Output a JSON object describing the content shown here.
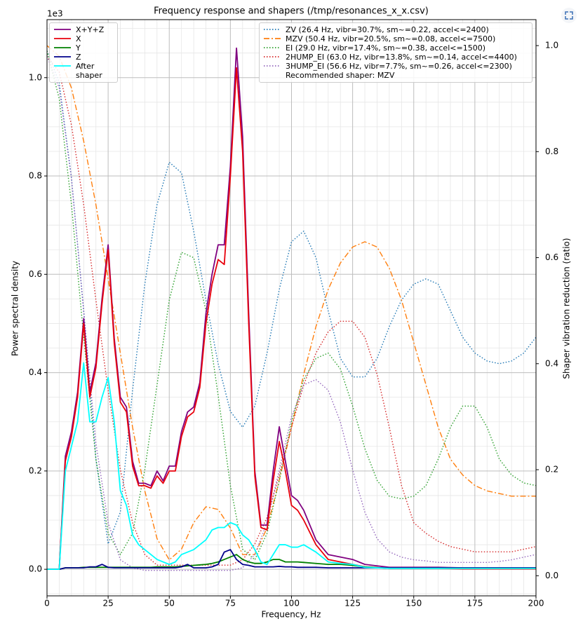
{
  "chart_data": {
    "type": "line",
    "title": "Frequency response and shapers (/tmp/resonances_x_x.csv)",
    "x_label": "Frequency, Hz",
    "y_label": "Power spectral density",
    "y2_label": "Shaper vibration reduction (ratio)",
    "y_offset_label": "1e3",
    "annotation": "Recommended shaper: MZV",
    "grid": true,
    "xlim": [
      0,
      200
    ],
    "ylim": [
      -0.054,
      1.118
    ],
    "y2lim": [
      -0.038,
      1.049
    ],
    "xticks": [
      0,
      25,
      50,
      75,
      100,
      125,
      150,
      175,
      200
    ],
    "yticks": [
      {
        "value": 0,
        "label": "0.0"
      },
      0.2,
      0.4,
      0.6,
      0.8,
      {
        "value": 1,
        "label": "1.0"
      }
    ],
    "y2ticks": [
      {
        "value": 0,
        "label": "0.0"
      },
      0.2,
      0.4,
      0.6,
      0.8,
      {
        "value": 1,
        "label": "1.0"
      }
    ],
    "xminorticks": [
      5,
      10,
      15,
      20,
      30,
      35,
      40,
      45,
      55,
      60,
      65,
      70,
      80,
      85,
      90,
      95,
      105,
      110,
      115,
      120,
      130,
      135,
      140,
      145,
      155,
      160,
      165,
      170,
      180,
      185,
      190,
      195
    ],
    "yminorticks": [
      -0.05,
      0.05,
      0.1,
      0.15,
      0.25,
      0.3,
      0.35,
      0.45,
      0.5,
      0.55,
      0.65,
      0.7,
      0.75,
      0.85,
      0.9,
      0.95,
      1.05,
      1.1
    ],
    "x": [
      0,
      2.5,
      5,
      7.5,
      10,
      12.5,
      15,
      17.5,
      20,
      22.5,
      25,
      27.5,
      30,
      32.5,
      35,
      37.5,
      40,
      42.5,
      45,
      47.5,
      50,
      52.5,
      55,
      57.5,
      60,
      62.5,
      65,
      67.5,
      70,
      72.5,
      75,
      77.5,
      80,
      82.5,
      85,
      87.5,
      90,
      92.5,
      95,
      97.5,
      100,
      102.5,
      105,
      110,
      115,
      120,
      125,
      130,
      140,
      150,
      160,
      170,
      180,
      190,
      200
    ],
    "series": [
      {
        "name": "X+Y+Z",
        "color": "#800080",
        "linestyle": "solid",
        "values": [
          0,
          0,
          0,
          0.23,
          0.28,
          0.36,
          0.51,
          0.36,
          0.42,
          0.55,
          0.66,
          0.47,
          0.35,
          0.33,
          0.22,
          0.175,
          0.175,
          0.17,
          0.2,
          0.18,
          0.21,
          0.21,
          0.28,
          0.32,
          0.33,
          0.38,
          0.52,
          0.6,
          0.66,
          0.66,
          0.82,
          1.06,
          0.88,
          0.52,
          0.2,
          0.09,
          0.09,
          0.2,
          0.29,
          0.22,
          0.15,
          0.14,
          0.12,
          0.06,
          0.03,
          0.025,
          0.02,
          0.01,
          0.004,
          0.004,
          0.004,
          0.003,
          0.003,
          0.003,
          0.003
        ]
      },
      {
        "name": "X",
        "color": "#e8000b",
        "linestyle": "solid",
        "values": [
          0,
          0,
          0,
          0.22,
          0.27,
          0.35,
          0.5,
          0.35,
          0.41,
          0.54,
          0.65,
          0.46,
          0.34,
          0.32,
          0.21,
          0.17,
          0.17,
          0.165,
          0.19,
          0.175,
          0.2,
          0.2,
          0.27,
          0.31,
          0.32,
          0.37,
          0.5,
          0.58,
          0.63,
          0.62,
          0.8,
          1.02,
          0.85,
          0.5,
          0.19,
          0.085,
          0.08,
          0.18,
          0.26,
          0.2,
          0.13,
          0.12,
          0.1,
          0.05,
          0.02,
          0.015,
          0.01,
          0.005,
          0.002,
          0.002,
          0.002,
          0.001,
          0.001,
          0.001,
          0.001
        ]
      },
      {
        "name": "Y",
        "color": "#008000",
        "linestyle": "solid",
        "values": [
          0,
          0,
          0,
          0.003,
          0.003,
          0.003,
          0.004,
          0.004,
          0.004,
          0.004,
          0.004,
          0.004,
          0.004,
          0.004,
          0.004,
          0.004,
          0.004,
          0.004,
          0.005,
          0.005,
          0.005,
          0.005,
          0.006,
          0.007,
          0.008,
          0.009,
          0.01,
          0.012,
          0.015,
          0.02,
          0.025,
          0.03,
          0.02,
          0.015,
          0.012,
          0.012,
          0.015,
          0.02,
          0.02,
          0.015,
          0.015,
          0.015,
          0.014,
          0.012,
          0.01,
          0.01,
          0.008,
          0.005,
          0.002,
          0.002,
          0.002,
          0.002,
          0.002,
          0.002,
          0.002
        ]
      },
      {
        "name": "Z",
        "color": "#00008b",
        "linestyle": "solid",
        "values": [
          0,
          0,
          0,
          0.003,
          0.003,
          0.003,
          0.003,
          0.005,
          0.005,
          0.01,
          0.004,
          0.003,
          0.003,
          0.003,
          0.003,
          0.003,
          0.003,
          0.003,
          0.003,
          0.003,
          0.003,
          0.003,
          0.005,
          0.01,
          0.003,
          0.003,
          0.003,
          0.005,
          0.01,
          0.035,
          0.04,
          0.02,
          0.01,
          0.008,
          0.005,
          0.005,
          0.005,
          0.005,
          0.006,
          0.005,
          0.005,
          0.004,
          0.004,
          0.004,
          0.003,
          0.003,
          0.003,
          0.003,
          0.003,
          0.003,
          0.003,
          0.003,
          0.003,
          0.003,
          0.003
        ]
      },
      {
        "name": "After shaper",
        "color": "#00ffff",
        "linestyle": "solid",
        "values": [
          0,
          0,
          0,
          0.2,
          0.25,
          0.3,
          0.42,
          0.3,
          0.3,
          0.35,
          0.39,
          0.3,
          0.16,
          0.13,
          0.07,
          0.05,
          0.04,
          0.03,
          0.02,
          0.015,
          0.01,
          0.015,
          0.03,
          0.035,
          0.04,
          0.05,
          0.06,
          0.08,
          0.085,
          0.085,
          0.095,
          0.09,
          0.07,
          0.06,
          0.04,
          0.015,
          0.01,
          0.03,
          0.05,
          0.05,
          0.045,
          0.045,
          0.05,
          0.035,
          0.015,
          0.012,
          0.01,
          0.004,
          0.002,
          0.002,
          0.002,
          0.002,
          0.002,
          0.002,
          0.002
        ]
      },
      {
        "name": "ZV (26.4 Hz, vibr=30.7%, sm~=0.22, accel<=2400)",
        "color": "#1f77b4",
        "linestyle": "dotted",
        "axis": "y2",
        "x": [
          0,
          5,
          10,
          15,
          20,
          25,
          30,
          35,
          40,
          45,
          50,
          55,
          60,
          65,
          70,
          75,
          80,
          85,
          90,
          95,
          100,
          105,
          110,
          115,
          120,
          125,
          130,
          135,
          140,
          145,
          150,
          155,
          160,
          165,
          170,
          175,
          180,
          185,
          190,
          195,
          200
        ],
        "values": [
          0.99,
          0.93,
          0.75,
          0.5,
          0.22,
          0.06,
          0.12,
          0.35,
          0.55,
          0.7,
          0.78,
          0.76,
          0.65,
          0.52,
          0.4,
          0.31,
          0.28,
          0.32,
          0.42,
          0.54,
          0.63,
          0.65,
          0.6,
          0.5,
          0.41,
          0.375,
          0.375,
          0.41,
          0.47,
          0.52,
          0.55,
          0.56,
          0.55,
          0.5,
          0.45,
          0.42,
          0.405,
          0.4,
          0.405,
          0.42,
          0.45
        ]
      },
      {
        "name": "MZV (50.4 Hz, vibr=20.5%, sm~=0.08, accel<=7500)",
        "color": "#ff7f0e",
        "linestyle": "dashdot",
        "axis": "y2",
        "x": [
          0,
          5,
          10,
          15,
          20,
          25,
          30,
          35,
          40,
          45,
          50,
          55,
          60,
          65,
          70,
          75,
          80,
          85,
          90,
          95,
          100,
          105,
          110,
          115,
          120,
          125,
          130,
          135,
          140,
          145,
          150,
          155,
          160,
          165,
          170,
          175,
          180,
          185,
          190,
          195,
          200
        ],
        "values": [
          1.0,
          0.98,
          0.92,
          0.82,
          0.7,
          0.56,
          0.42,
          0.28,
          0.16,
          0.07,
          0.03,
          0.05,
          0.1,
          0.13,
          0.125,
          0.09,
          0.04,
          0.04,
          0.09,
          0.18,
          0.28,
          0.38,
          0.47,
          0.54,
          0.59,
          0.62,
          0.63,
          0.62,
          0.58,
          0.52,
          0.44,
          0.36,
          0.28,
          0.22,
          0.19,
          0.17,
          0.16,
          0.155,
          0.15,
          0.15,
          0.15
        ]
      },
      {
        "name": "EI (29.0 Hz, vibr=17.4%, sm~=0.38, accel<=1500)",
        "color": "#2ca02c",
        "linestyle": "dotted",
        "axis": "y2",
        "x": [
          0,
          5,
          10,
          15,
          20,
          25,
          30,
          35,
          40,
          45,
          50,
          55,
          60,
          65,
          70,
          75,
          80,
          85,
          90,
          95,
          100,
          105,
          110,
          115,
          120,
          125,
          130,
          135,
          140,
          145,
          150,
          155,
          160,
          165,
          170,
          175,
          180,
          185,
          190,
          195,
          200
        ],
        "values": [
          0.99,
          0.9,
          0.7,
          0.45,
          0.22,
          0.08,
          0.04,
          0.08,
          0.2,
          0.36,
          0.52,
          0.61,
          0.6,
          0.5,
          0.34,
          0.17,
          0.05,
          0.03,
          0.08,
          0.18,
          0.29,
          0.37,
          0.41,
          0.42,
          0.39,
          0.32,
          0.24,
          0.18,
          0.15,
          0.145,
          0.15,
          0.17,
          0.22,
          0.28,
          0.32,
          0.32,
          0.28,
          0.22,
          0.19,
          0.175,
          0.17
        ]
      },
      {
        "name": "2HUMP_EI (63.0 Hz, vibr=13.8%, sm~=0.14, accel<=4400)",
        "color": "#d62728",
        "linestyle": "dotted",
        "axis": "y2",
        "x": [
          0,
          5,
          10,
          15,
          20,
          25,
          30,
          35,
          40,
          45,
          50,
          55,
          60,
          65,
          70,
          75,
          80,
          85,
          90,
          95,
          100,
          105,
          110,
          115,
          120,
          125,
          130,
          135,
          140,
          145,
          150,
          155,
          160,
          165,
          170,
          175,
          180,
          185,
          190,
          195,
          200
        ],
        "values": [
          0.98,
          0.95,
          0.85,
          0.7,
          0.52,
          0.35,
          0.2,
          0.1,
          0.04,
          0.02,
          0.02,
          0.02,
          0.02,
          0.02,
          0.02,
          0.02,
          0.03,
          0.06,
          0.11,
          0.19,
          0.28,
          0.36,
          0.42,
          0.46,
          0.48,
          0.48,
          0.45,
          0.38,
          0.28,
          0.17,
          0.1,
          0.08,
          0.065,
          0.055,
          0.05,
          0.045,
          0.045,
          0.045,
          0.045,
          0.05,
          0.055
        ]
      },
      {
        "name": "3HUMP_EI (56.6 Hz, vibr=7.7%, sm~=0.26, accel<=2300)",
        "color": "#9467bd",
        "linestyle": "dotted",
        "axis": "y2",
        "x": [
          0,
          5,
          10,
          15,
          20,
          25,
          30,
          35,
          40,
          45,
          50,
          55,
          60,
          65,
          70,
          75,
          80,
          85,
          90,
          95,
          100,
          105,
          110,
          115,
          120,
          125,
          130,
          135,
          140,
          145,
          150,
          155,
          160,
          165,
          170,
          175,
          180,
          185,
          190,
          195,
          200
        ],
        "values": [
          0.98,
          0.92,
          0.75,
          0.5,
          0.25,
          0.1,
          0.03,
          0.015,
          0.01,
          0.01,
          0.01,
          0.01,
          0.01,
          0.01,
          0.01,
          0.01,
          0.015,
          0.04,
          0.1,
          0.2,
          0.3,
          0.36,
          0.37,
          0.35,
          0.29,
          0.2,
          0.12,
          0.07,
          0.045,
          0.035,
          0.03,
          0.028,
          0.025,
          0.025,
          0.025,
          0.025,
          0.025,
          0.027,
          0.03,
          0.035,
          0.04
        ]
      }
    ]
  }
}
